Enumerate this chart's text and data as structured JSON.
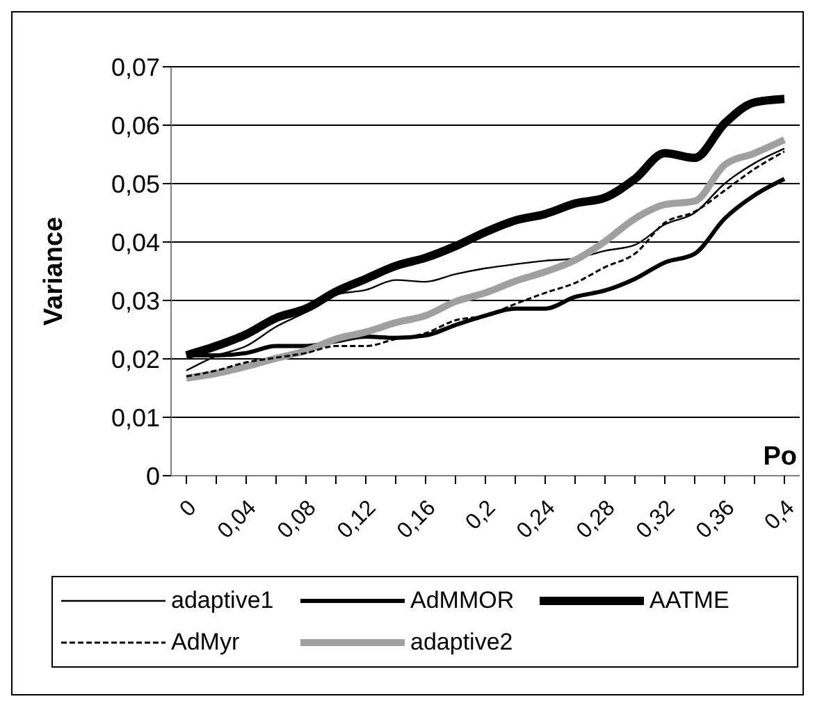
{
  "chart_data": {
    "type": "line",
    "xlabel": "Po",
    "ylabel": "Variance",
    "categories": [
      "0",
      null,
      "0,04",
      null,
      "0,08",
      null,
      "0,12",
      null,
      "0,16",
      null,
      "0,2",
      null,
      "0,24",
      null,
      "0,28",
      null,
      "0,32",
      null,
      "0,36",
      null,
      "0,4"
    ],
    "series": [
      {
        "name": "adaptive1",
        "color": "#000000",
        "line_style": "solid",
        "values": [
          0.018,
          0.0205,
          0.0222,
          0.0255,
          0.028,
          0.031,
          0.0318,
          0.0335,
          0.0332,
          0.0345,
          0.0355,
          0.0362,
          0.0368,
          0.0372,
          0.0385,
          0.0395,
          0.043,
          0.045,
          0.05,
          0.0535,
          0.056
        ]
      },
      {
        "name": "AdMMOR",
        "color": "#000000",
        "line_style": "solid",
        "values": [
          0.0206,
          0.0206,
          0.021,
          0.0222,
          0.0222,
          0.023,
          0.0238,
          0.0236,
          0.024,
          0.0258,
          0.0274,
          0.0286,
          0.0286,
          0.0306,
          0.0317,
          0.0337,
          0.0365,
          0.038,
          0.044,
          0.048,
          0.0508
        ]
      },
      {
        "name": "AATME",
        "color": "#000000",
        "line_style": "solid",
        "values": [
          0.0206,
          0.0222,
          0.0242,
          0.027,
          0.0286,
          0.0315,
          0.0337,
          0.0359,
          0.0373,
          0.0393,
          0.0417,
          0.0437,
          0.0448,
          0.0466,
          0.0476,
          0.0508,
          0.0552,
          0.0544,
          0.0603,
          0.0639,
          0.0645
        ]
      },
      {
        "name": "AdMyr",
        "color": "#000000",
        "line_style": "dashed",
        "values": [
          0.017,
          0.018,
          0.0194,
          0.0202,
          0.021,
          0.0222,
          0.0222,
          0.0234,
          0.0244,
          0.0266,
          0.0274,
          0.0294,
          0.0313,
          0.033,
          0.0357,
          0.038,
          0.0433,
          0.0452,
          0.0488,
          0.0525,
          0.0555
        ]
      },
      {
        "name": "adaptive2",
        "color": "#a0a0a0",
        "line_style": "solid",
        "values": [
          0.0167,
          0.0175,
          0.0187,
          0.0201,
          0.0214,
          0.0234,
          0.0246,
          0.0262,
          0.0274,
          0.0298,
          0.0313,
          0.0333,
          0.0349,
          0.0369,
          0.0401,
          0.044,
          0.0464,
          0.047,
          0.0532,
          0.0552,
          0.0575
        ]
      }
    ],
    "ylim": [
      0,
      0.07
    ],
    "yticks": [
      0,
      {
        "value": 0.01,
        "label": "0,01"
      },
      {
        "value": 0.02,
        "label": "0,02"
      },
      {
        "value": 0.03,
        "label": "0,03"
      },
      {
        "value": 0.04,
        "label": "0,04"
      },
      {
        "value": 0.05,
        "label": "0,05"
      },
      {
        "value": 0.06,
        "label": "0,06"
      },
      {
        "value": 0.07,
        "label": "0,07"
      }
    ],
    "grid": "y",
    "legend": "bottom",
    "marker": "none"
  }
}
